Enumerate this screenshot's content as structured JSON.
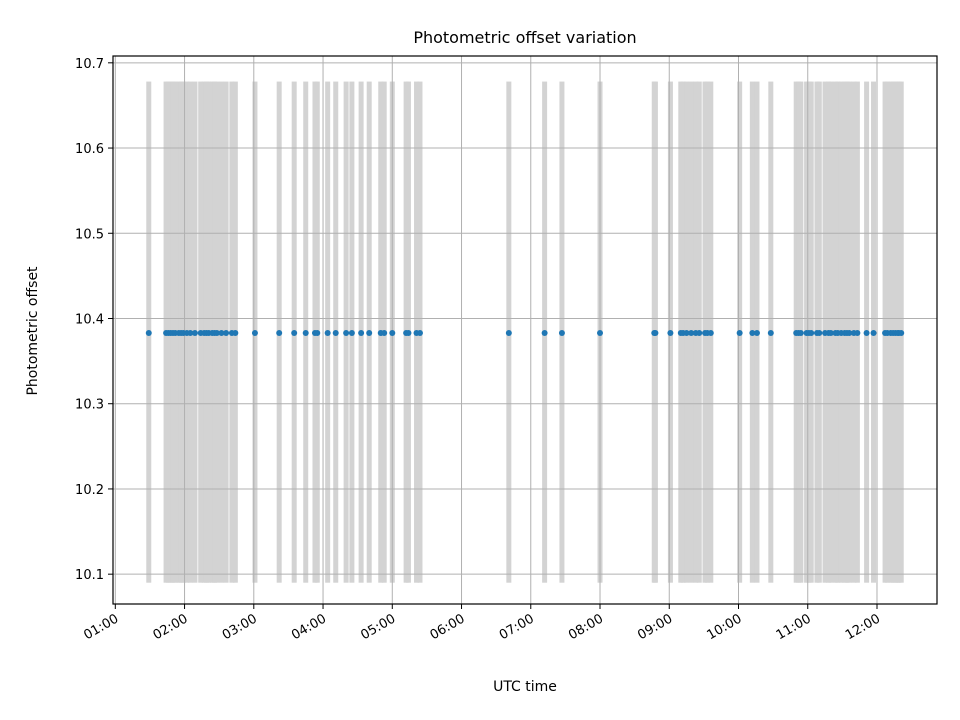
{
  "chart_data": {
    "type": "scatter",
    "title": "Photometric offset variation",
    "xlabel": "UTC time",
    "ylabel": "Photometric offset",
    "x_unit": "UTC hours",
    "xlim": [
      "00:58",
      "12:52"
    ],
    "ylim": [
      10.065,
      10.708
    ],
    "x_ticks": [
      "01:00",
      "02:00",
      "03:00",
      "04:00",
      "05:00",
      "06:00",
      "07:00",
      "08:00",
      "09:00",
      "10:00",
      "11:00",
      "12:00"
    ],
    "y_ticks": [
      "10.1",
      "10.2",
      "10.3",
      "10.4",
      "10.5",
      "10.6",
      "10.7"
    ],
    "grid": true,
    "band_color": "#d3d3d3",
    "point_color": "#1f77b4",
    "band_range": [
      10.09,
      10.678
    ],
    "series": [
      {
        "y": 10.383,
        "x": [
          "01:29",
          "01:44",
          "01:46",
          "01:48",
          "01:50",
          "01:52",
          "01:55",
          "01:57",
          "01:59",
          "02:02",
          "02:05",
          "02:09",
          "02:14",
          "02:17",
          "02:19",
          "02:21",
          "02:24",
          "02:26",
          "02:28",
          "02:32",
          "02:36",
          "02:41",
          "02:44",
          "03:01",
          "03:22",
          "03:35",
          "03:45",
          "03:53",
          "03:55",
          "04:04",
          "04:11",
          "04:20",
          "04:25",
          "04:33",
          "04:40",
          "04:50",
          "04:53",
          "05:00",
          "05:12",
          "05:14",
          "05:21",
          "05:24",
          "06:41",
          "07:12",
          "07:27",
          "08:00",
          "08:47",
          "08:48",
          "09:01",
          "09:10",
          "09:12",
          "09:15",
          "09:19",
          "09:23",
          "09:26",
          "09:31",
          "09:33",
          "09:36",
          "10:01",
          "10:12",
          "10:16",
          "10:28",
          "10:50",
          "10:52",
          "10:54",
          "10:59",
          "11:01",
          "11:03",
          "11:08",
          "11:10",
          "11:15",
          "11:18",
          "11:20",
          "11:24",
          "11:26",
          "11:29",
          "11:32",
          "11:34",
          "11:36",
          "11:40",
          "11:43",
          "11:51",
          "11:57",
          "12:07",
          "12:09",
          "12:12",
          "12:14",
          "12:16",
          "12:18",
          "12:19",
          "12:21"
        ]
      }
    ]
  }
}
